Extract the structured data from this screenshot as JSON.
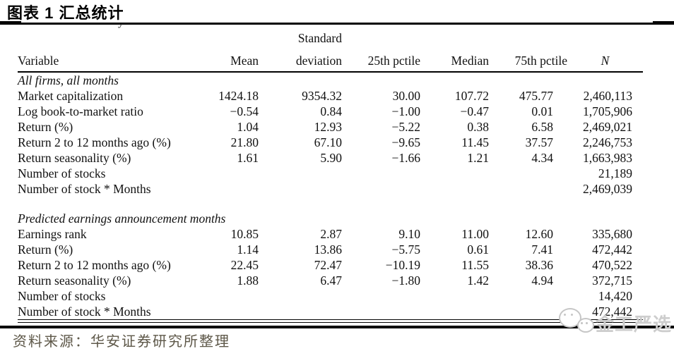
{
  "page": {
    "title": "图表 1 汇总统计",
    "source_note": "资料来源：华安证券研究所整理",
    "crop_artifact_glyph": "y",
    "watermark": {
      "icon": "wechat-chat-bubbles-icon",
      "text": "金工严选"
    }
  },
  "colors": {
    "text": "#111111",
    "rules": "#000000",
    "source_text": "#5d5748",
    "watermark": "#cdcdcd",
    "background": "#ffffff"
  },
  "table": {
    "headers": {
      "variable": "Variable",
      "mean": "Mean",
      "std_line1": "Standard",
      "std_line2": "deviation",
      "p25": "25th pctile",
      "median": "Median",
      "p75": "75th pctile",
      "n": "N"
    },
    "sections": [
      {
        "title": "All firms, all months",
        "rows": [
          {
            "label": "Market capitalization",
            "mean": "1424.18",
            "std": "9354.32",
            "p25": "30.00",
            "median": "107.72",
            "p75": "475.77",
            "n": "2,460,113"
          },
          {
            "label": "Log book-to-market ratio",
            "mean": "−0.54",
            "std": "0.84",
            "p25": "−1.00",
            "median": "−0.47",
            "p75": "0.01",
            "n": "1,705,906"
          },
          {
            "label": "Return (%)",
            "mean": "1.04",
            "std": "12.93",
            "p25": "−5.22",
            "median": "0.38",
            "p75": "6.58",
            "n": "2,469,021"
          },
          {
            "label": "Return 2 to 12 months ago (%)",
            "mean": "21.80",
            "std": "67.10",
            "p25": "−9.65",
            "median": "11.45",
            "p75": "37.57",
            "n": "2,246,753"
          },
          {
            "label": "Return seasonality (%)",
            "mean": "1.61",
            "std": "5.90",
            "p25": "−1.66",
            "median": "1.21",
            "p75": "4.34",
            "n": "1,663,983"
          },
          {
            "label": "Number of stocks",
            "mean": "",
            "std": "",
            "p25": "",
            "median": "",
            "p75": "",
            "n": "21,189"
          },
          {
            "label": "Number of stock * Months",
            "mean": "",
            "std": "",
            "p25": "",
            "median": "",
            "p75": "",
            "n": "2,469,039"
          }
        ]
      },
      {
        "title": "Predicted earnings announcement months",
        "rows": [
          {
            "label": "Earnings rank",
            "mean": "10.85",
            "std": "2.87",
            "p25": "9.10",
            "median": "11.00",
            "p75": "12.60",
            "n": "335,680"
          },
          {
            "label": "Return (%)",
            "mean": "1.14",
            "std": "13.86",
            "p25": "−5.75",
            "median": "0.61",
            "p75": "7.41",
            "n": "472,442"
          },
          {
            "label": "Return 2 to 12 months ago (%)",
            "mean": "22.45",
            "std": "72.47",
            "p25": "−10.19",
            "median": "11.55",
            "p75": "38.36",
            "n": "470,522"
          },
          {
            "label": "Return seasonality (%)",
            "mean": "1.88",
            "std": "6.47",
            "p25": "−1.80",
            "median": "1.42",
            "p75": "4.94",
            "n": "372,715"
          },
          {
            "label": "Number of stocks",
            "mean": "",
            "std": "",
            "p25": "",
            "median": "",
            "p75": "",
            "n": "14,420"
          },
          {
            "label": "Number of stock * Months",
            "mean": "",
            "std": "",
            "p25": "",
            "median": "",
            "p75": "",
            "n": "472,442"
          }
        ]
      }
    ]
  }
}
